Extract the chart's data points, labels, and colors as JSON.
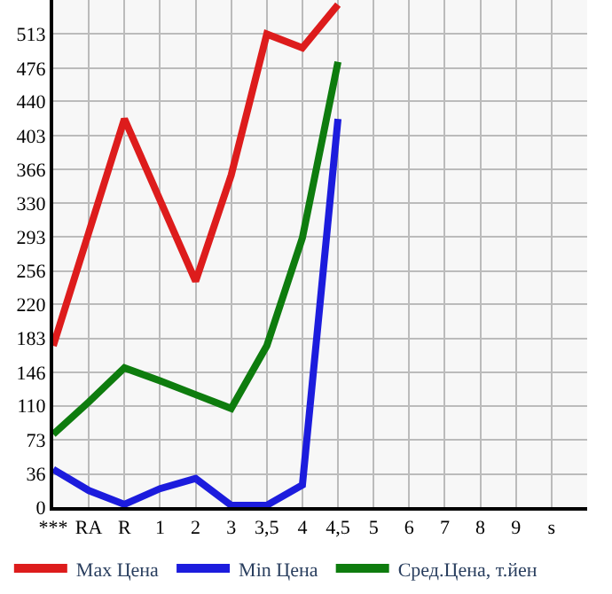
{
  "chart_data": {
    "type": "line",
    "categories": [
      "***",
      "RA",
      "R",
      "1",
      "2",
      "3",
      "3,5",
      "4",
      "4,5",
      "5",
      "6",
      "7",
      "8",
      "9",
      "s"
    ],
    "series": [
      {
        "name": "Max Цена",
        "color": "#dd1c1c",
        "values": [
          175,
          298,
          421,
          333,
          245,
          360,
          513,
          498,
          545,
          null,
          null,
          null,
          null,
          null,
          null
        ]
      },
      {
        "name": "Min Цена",
        "color": "#1c1cdd",
        "values": [
          41,
          18,
          3,
          20,
          31,
          2,
          2,
          24,
          421,
          null,
          null,
          null,
          null,
          null,
          null
        ]
      },
      {
        "name": "Сред.Цена, т.йен",
        "color": "#0e7c0e",
        "values": [
          79,
          114,
          151,
          137,
          122,
          107,
          175,
          292,
          483,
          null,
          null,
          null,
          null,
          null,
          null
        ]
      }
    ],
    "ylim": [
      0,
      550
    ],
    "yticks": [
      0,
      36,
      73,
      110,
      146,
      183,
      220,
      256,
      293,
      330,
      366,
      403,
      440,
      476,
      513
    ],
    "grid": true,
    "legend": "bottom",
    "marker": "none",
    "line_style": "solid"
  }
}
